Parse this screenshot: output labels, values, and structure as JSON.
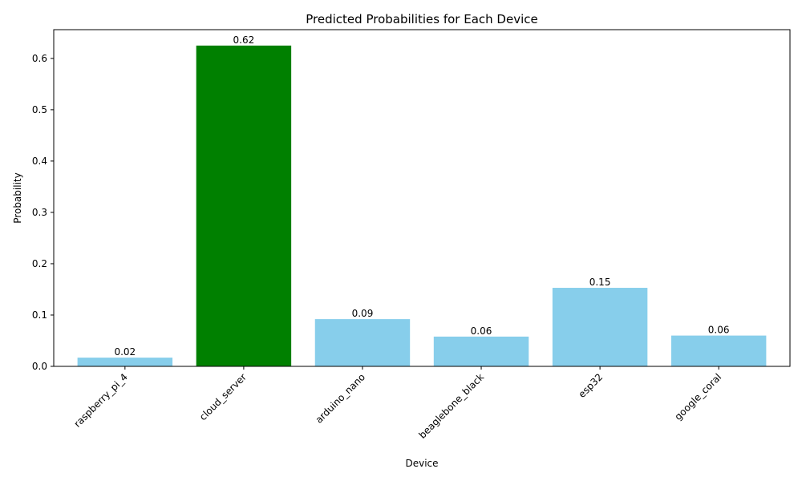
{
  "chart_data": {
    "type": "bar",
    "title": "Predicted Probabilities for Each Device",
    "xlabel": "Device",
    "ylabel": "Probability",
    "categories": [
      "raspberry_pi_4",
      "cloud_server",
      "arduino_nano",
      "beaglebone_black",
      "esp32",
      "google_coral"
    ],
    "values": [
      0.017,
      0.625,
      0.092,
      0.058,
      0.153,
      0.06
    ],
    "value_labels": [
      "0.02",
      "0.62",
      "0.09",
      "0.06",
      "0.15",
      "0.06"
    ],
    "colors": [
      "#87ceeb",
      "#008000",
      "#87ceeb",
      "#87ceeb",
      "#87ceeb",
      "#87ceeb"
    ],
    "ylim": [
      0,
      0.656
    ],
    "yticks": [
      0.0,
      0.1,
      0.2,
      0.3,
      0.4,
      0.5,
      0.6
    ],
    "ytick_labels": [
      "0.0",
      "0.1",
      "0.2",
      "0.3",
      "0.4",
      "0.5",
      "0.6"
    ],
    "xtick_rotation_deg": 45,
    "grid": false,
    "legend": "none"
  }
}
